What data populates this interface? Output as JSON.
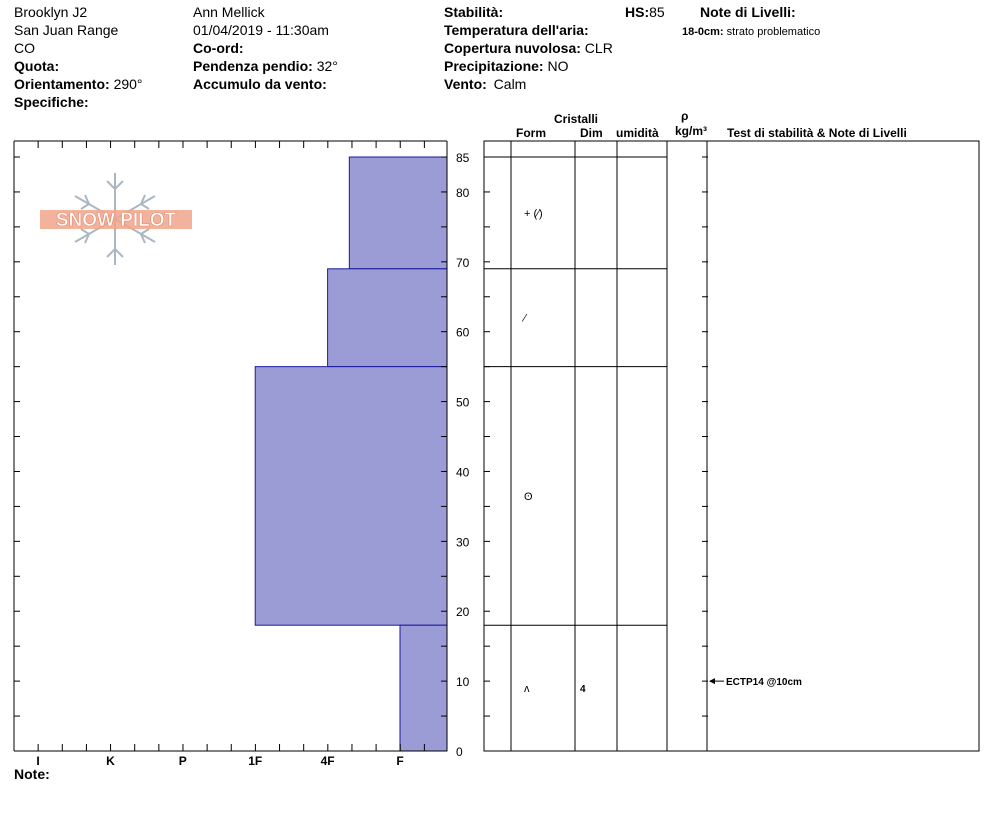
{
  "header": {
    "col1": [
      "Brooklyn J2",
      "San Juan Range",
      "CO"
    ],
    "quota_label": "Quota:",
    "orient_label": "Orientamento:",
    "orient_value": "290°",
    "specifiche_label": "Specifiche:",
    "observer": "Ann Mellick",
    "datetime": "01/04/2019 - 11:30am",
    "coord_label": "Co-ord:",
    "pendenza_label": "Pendenza pendio:",
    "pendenza_value": "32°",
    "accumulo_label": "Accumulo da vento:",
    "stabilita_label": "Stabilità:",
    "temp_label": "Temperatura dell'aria:",
    "copertura_label": "Copertura nuvolosa:",
    "copertura_value": "CLR",
    "precip_label": "Precipitazione:",
    "precip_value": "NO",
    "vento_label": "Vento:",
    "vento_value": "Calm",
    "hs_label": "HS:",
    "hs_value": "85",
    "note_livelli_label": "Note di Livelli:",
    "note_livelli_range": "18-0cm:",
    "note_livelli_text": "strato problematico"
  },
  "columns": {
    "cristalli": "Cristalli",
    "form": "Form",
    "dim": "Dim",
    "umidita": "umidità",
    "rho": "ρ",
    "density_unit": "kg/m³",
    "test_header": "Test di stabilità & Note di Livelli"
  },
  "footer": {
    "note_label": "Note:"
  },
  "logo": {
    "text": "SNOW PILOT",
    "icon": "snowflake-icon"
  },
  "colors": {
    "layer_fill": "#9b9bd6",
    "layer_stroke": "#1a1a9e",
    "logo_orange": "#f1a58a",
    "logo_gray": "#a9b7c4"
  },
  "chart_data": {
    "type": "bar",
    "orientation": "horizontal",
    "y_unit": "cm",
    "ylim": [
      0,
      85
    ],
    "y_ticks": [
      0,
      10,
      20,
      30,
      40,
      50,
      60,
      70,
      80,
      85
    ],
    "hardness_scale": [
      "I",
      "K",
      "P",
      "1F",
      "4F",
      "F"
    ],
    "layers": [
      {
        "top": 85,
        "bottom": 69,
        "hardness": 4.3,
        "form": "+ (⁄)",
        "size": ""
      },
      {
        "top": 69,
        "bottom": 55,
        "hardness": 4.0,
        "form": "⁄",
        "size": ""
      },
      {
        "top": 55,
        "bottom": 18,
        "hardness": 3.0,
        "form": "ʘ",
        "size": ""
      },
      {
        "top": 18,
        "bottom": 0,
        "hardness": 5.0,
        "form": "ʌ",
        "size": "4"
      }
    ],
    "tests": [
      {
        "depth": 10,
        "label": "ECTP14 @10cm"
      }
    ]
  }
}
